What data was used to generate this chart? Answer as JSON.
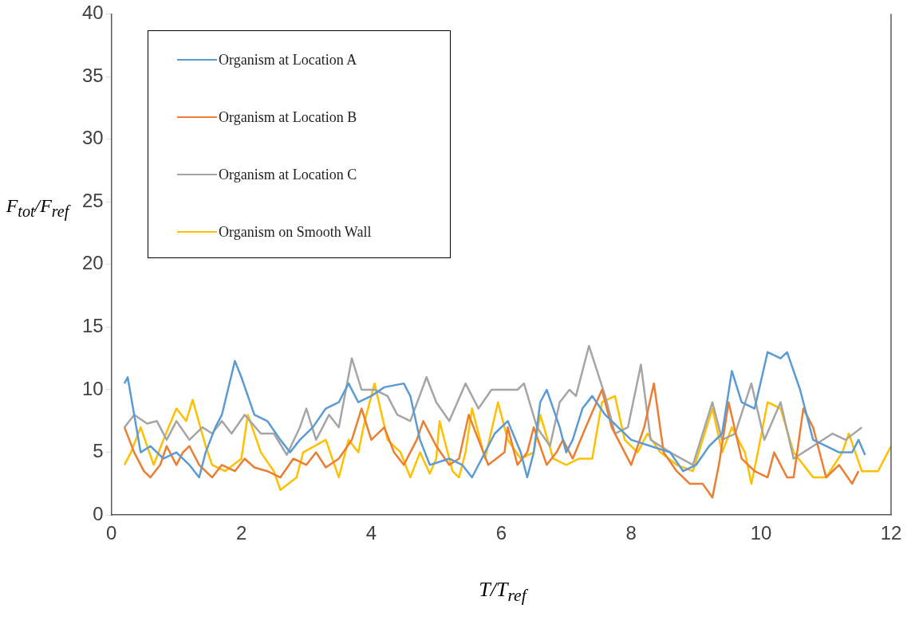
{
  "chart_data": {
    "type": "line",
    "xlabel": "T/T$_{ref}$",
    "ylabel": "F$_{tot}$/F$_{ref}$",
    "xlim": [
      0,
      12
    ],
    "xticks": [
      0,
      2,
      4,
      6,
      8,
      10,
      12
    ],
    "ylim": [
      0,
      40
    ],
    "yticks": [
      0,
      5,
      10,
      15,
      20,
      25,
      30,
      35,
      40
    ],
    "grid": false,
    "legend": "top left",
    "marker": "none",
    "line_style": "solid",
    "series": [
      {
        "name": "Organism at Location A",
        "color": "#5b9bd5",
        "x": [
          0.2,
          0.25,
          0.45,
          0.6,
          0.8,
          1.0,
          1.2,
          1.35,
          1.45,
          1.6,
          1.7,
          1.9,
          2.0,
          2.2,
          2.4,
          2.6,
          2.75,
          2.9,
          3.1,
          3.3,
          3.5,
          3.65,
          3.8,
          4.0,
          4.2,
          4.5,
          4.6,
          4.75,
          4.9,
          5.2,
          5.4,
          5.55,
          5.7,
          5.9,
          6.1,
          6.3,
          6.4,
          6.5,
          6.6,
          6.7,
          6.9,
          7.0,
          7.1,
          7.25,
          7.4,
          7.6,
          7.8,
          8.0,
          8.3,
          8.6,
          8.8,
          9.0,
          9.2,
          9.4,
          9.55,
          9.7,
          9.9,
          10.1,
          10.3,
          10.4,
          10.6,
          10.8,
          11.0,
          11.2,
          11.4,
          11.5,
          11.6
        ],
        "values": [
          10.5,
          11,
          5,
          5.5,
          4.5,
          5,
          4,
          3,
          5,
          7,
          8,
          12.3,
          11,
          8,
          7.5,
          6,
          5,
          6,
          7,
          8.5,
          9,
          10.5,
          9,
          9.5,
          10.2,
          10.5,
          9.5,
          6,
          4,
          4.5,
          4,
          3,
          4.5,
          6.5,
          7.5,
          5,
          3,
          5,
          9,
          10,
          7,
          5,
          6,
          8.5,
          9.5,
          8,
          7,
          6,
          5.5,
          5,
          3.5,
          4,
          5.5,
          6.5,
          11.5,
          9,
          8.5,
          13,
          12.5,
          13,
          10,
          6,
          5.5,
          5,
          5,
          6,
          4.8
        ]
      },
      {
        "name": "Organism at Location B",
        "color": "#ed7d31",
        "x": [
          0.2,
          0.35,
          0.5,
          0.6,
          0.75,
          0.85,
          1.0,
          1.1,
          1.2,
          1.35,
          1.55,
          1.7,
          1.9,
          2.05,
          2.2,
          2.4,
          2.6,
          2.8,
          3.0,
          3.15,
          3.3,
          3.5,
          3.7,
          3.85,
          4.0,
          4.2,
          4.35,
          4.5,
          4.7,
          4.8,
          5.0,
          5.2,
          5.35,
          5.5,
          5.65,
          5.8,
          6.05,
          6.1,
          6.25,
          6.4,
          6.5,
          6.7,
          6.85,
          6.95,
          7.1,
          7.3,
          7.55,
          7.7,
          7.9,
          8.0,
          8.2,
          8.35,
          8.5,
          8.7,
          8.9,
          9.1,
          9.25,
          9.35,
          9.5,
          9.7,
          9.9,
          10.1,
          10.2,
          10.4,
          10.5,
          10.65,
          10.8,
          11.0,
          11.2,
          11.4,
          11.5
        ],
        "values": [
          7,
          5,
          3.5,
          3,
          4,
          5.5,
          4,
          5,
          5.5,
          4,
          3,
          4,
          3.5,
          4.5,
          3.8,
          3.5,
          3,
          4.5,
          4,
          5,
          3.8,
          4.5,
          6,
          8.5,
          6,
          7,
          5,
          4,
          6,
          7.5,
          5.5,
          4,
          4.5,
          8,
          6,
          4,
          5,
          7,
          4,
          5,
          7,
          4,
          5,
          6,
          4.5,
          7,
          10,
          7,
          5,
          4,
          7,
          10.5,
          5,
          3.5,
          2.5,
          2.5,
          1.4,
          4,
          9,
          4.5,
          3.5,
          3,
          5,
          3,
          3,
          8.5,
          7,
          3,
          4,
          2.5,
          3.5
        ]
      },
      {
        "name": "Organism at Location C",
        "color": "#a5a5a5",
        "x": [
          0.2,
          0.35,
          0.55,
          0.7,
          0.85,
          1.0,
          1.2,
          1.4,
          1.55,
          1.7,
          1.85,
          2.05,
          2.3,
          2.5,
          2.7,
          2.9,
          3.0,
          3.15,
          3.35,
          3.5,
          3.7,
          3.85,
          4.05,
          4.25,
          4.4,
          4.6,
          4.85,
          5.0,
          5.2,
          5.45,
          5.65,
          5.85,
          6.25,
          6.35,
          6.55,
          6.75,
          6.9,
          7.05,
          7.15,
          7.35,
          7.6,
          7.75,
          7.95,
          8.15,
          8.3,
          8.6,
          8.95,
          9.25,
          9.4,
          9.6,
          9.85,
          10.05,
          10.3,
          10.5,
          10.8,
          11.1,
          11.3,
          11.55
        ],
        "values": [
          7,
          8,
          7.3,
          7.5,
          6,
          7.5,
          6,
          7,
          6.5,
          7.5,
          6.5,
          8,
          6.5,
          6.5,
          4.8,
          7,
          8.5,
          6,
          8,
          7,
          12.5,
          10,
          10,
          9.5,
          8,
          7.5,
          11,
          9,
          7.5,
          10.5,
          8.5,
          10,
          10,
          10.5,
          7,
          5.5,
          9,
          10,
          9.5,
          13.5,
          9.5,
          6.5,
          7,
          12,
          6,
          5,
          4,
          9,
          6,
          6.5,
          10.5,
          6,
          9,
          4.5,
          5.5,
          6.5,
          6,
          7
        ]
      },
      {
        "name": "Organism on Smooth Wall",
        "color": "#ffc000",
        "x": [
          0.2,
          0.3,
          0.45,
          0.55,
          0.65,
          0.8,
          1.0,
          1.15,
          1.25,
          1.45,
          1.55,
          1.75,
          2.0,
          2.1,
          2.3,
          2.5,
          2.6,
          2.85,
          2.95,
          3.3,
          3.5,
          3.65,
          3.8,
          3.9,
          4.05,
          4.25,
          4.45,
          4.6,
          4.75,
          4.9,
          5.0,
          5.05,
          5.25,
          5.35,
          5.45,
          5.55,
          5.75,
          5.95,
          6.1,
          6.3,
          6.5,
          6.6,
          6.8,
          7.0,
          7.2,
          7.4,
          7.55,
          7.75,
          7.9,
          8.1,
          8.25,
          8.45,
          8.7,
          8.95,
          9.25,
          9.4,
          9.55,
          9.75,
          9.85,
          9.95,
          10.1,
          10.3,
          10.5,
          10.8,
          11.0,
          11.25,
          11.35,
          11.55,
          11.8,
          12.0
        ],
        "values": [
          4,
          5,
          7,
          5.5,
          4,
          6,
          8.5,
          7.5,
          9.2,
          5.5,
          4,
          3.5,
          4.5,
          8,
          5,
          3.5,
          2,
          3,
          5,
          6,
          3,
          6,
          5,
          7.5,
          10.5,
          6,
          5,
          3,
          5,
          3.3,
          4.5,
          7.5,
          3.5,
          3,
          5,
          8.5,
          4.5,
          9,
          6,
          4.5,
          5,
          8,
          4.5,
          4,
          4.5,
          4.5,
          9,
          9.5,
          6,
          5,
          6.5,
          5,
          4,
          3.5,
          8.5,
          5,
          7,
          5,
          2.5,
          5,
          9,
          8.5,
          5,
          3,
          3,
          5,
          6.5,
          3.5,
          3.5,
          5.5
        ]
      }
    ]
  }
}
